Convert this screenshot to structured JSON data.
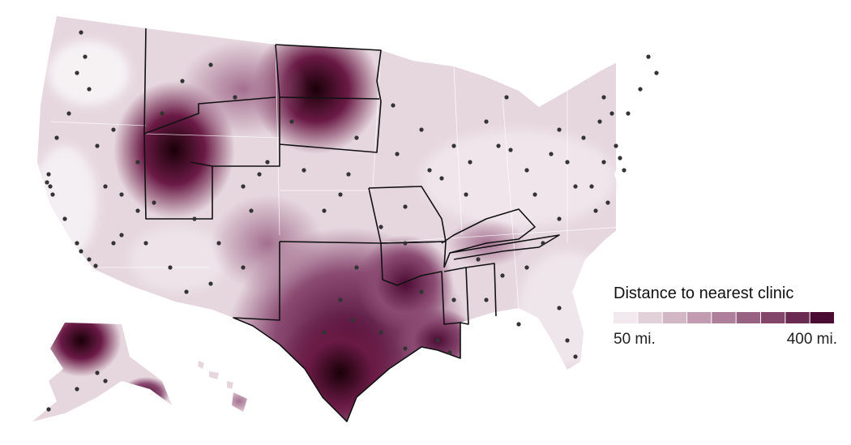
{
  "legend": {
    "title": "Distance to nearest clinic",
    "min_label": "50 mi.",
    "max_label": "400 mi.",
    "colors": [
      "#f1e9ed",
      "#e2d0d9",
      "#d2b6c4",
      "#c19bb0",
      "#ad7f9a",
      "#986383",
      "#82466b",
      "#6a2a52",
      "#4b0c34"
    ]
  }
}
